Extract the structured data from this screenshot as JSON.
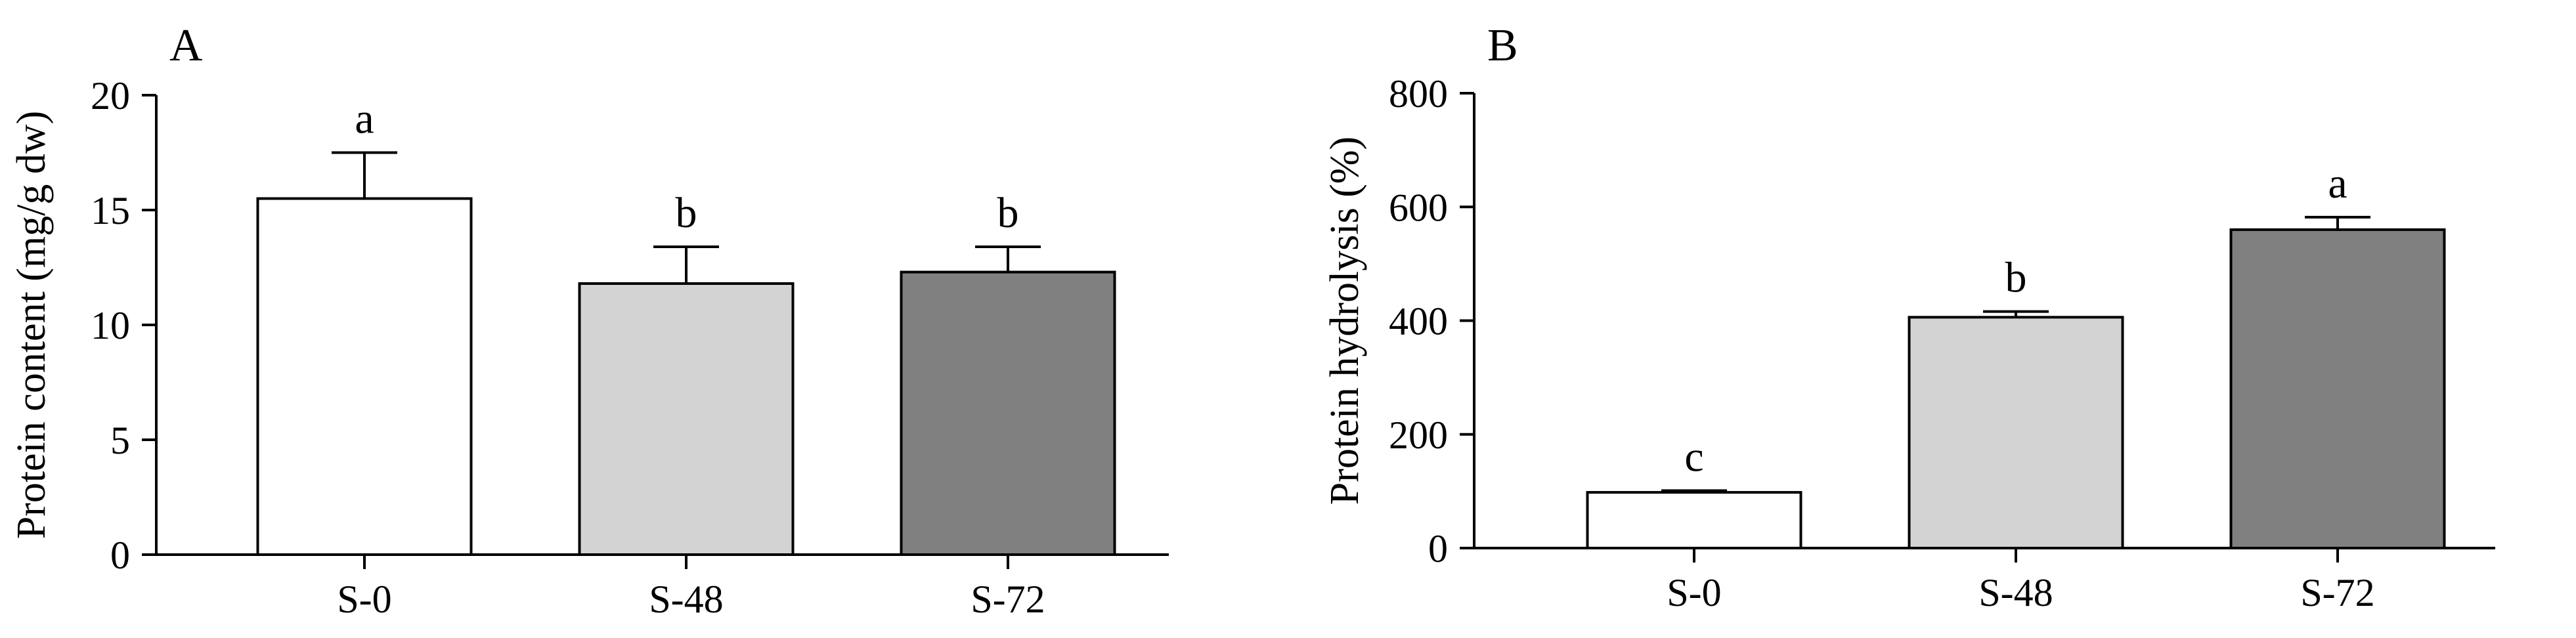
{
  "chart_data": [
    {
      "type": "bar",
      "panel_label": "A",
      "categories": [
        "S-0",
        "S-48",
        "S-72"
      ],
      "values": [
        15.5,
        11.8,
        12.3
      ],
      "errors": [
        2.0,
        1.6,
        1.1
      ],
      "significance": [
        "a",
        "b",
        "b"
      ],
      "bar_colors": [
        "#ffffff",
        "#d3d3d3",
        "#808080"
      ],
      "title": "",
      "xlabel": "",
      "ylabel": "Protein content (mg/g dw)",
      "ylim": [
        0,
        20
      ],
      "yticks": [
        0,
        5,
        10,
        15,
        20
      ],
      "ytick_labels": [
        "0",
        "5",
        "10",
        "15",
        "20"
      ],
      "grid": false
    },
    {
      "type": "bar",
      "panel_label": "B",
      "categories": [
        "S-0",
        "S-48",
        "S-72"
      ],
      "values": [
        98,
        406,
        560
      ],
      "errors": [
        3,
        10,
        22
      ],
      "significance": [
        "c",
        "b",
        "a"
      ],
      "bar_colors": [
        "#ffffff",
        "#d3d3d3",
        "#808080"
      ],
      "title": "",
      "xlabel": "",
      "ylabel": "Protein hydrolysis (%)",
      "ylim": [
        0,
        800
      ],
      "yticks": [
        0,
        200,
        400,
        600,
        800
      ],
      "ytick_labels": [
        "0",
        "200",
        "400",
        "600",
        "800"
      ],
      "grid": false
    }
  ]
}
